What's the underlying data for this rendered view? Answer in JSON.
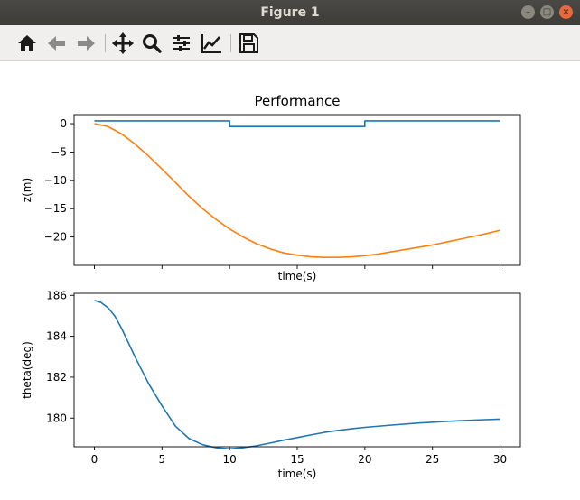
{
  "window": {
    "title": "Figure 1"
  },
  "toolbar": {
    "icons": [
      "home-icon",
      "back-arrow-icon",
      "forward-arrow-icon",
      "pan-icon",
      "zoom-icon",
      "configure-subplots-icon",
      "edit-axes-icon",
      "save-icon"
    ]
  },
  "chart_data": [
    {
      "type": "line",
      "title": "Performance",
      "xlabel": "time(s)",
      "ylabel": "z(m)",
      "xlim": [
        -1.5,
        31.5
      ],
      "ylim": [
        -25.0,
        1.6
      ],
      "xticks": [
        0,
        5,
        10,
        15,
        20,
        25,
        30
      ],
      "yticks": [
        0,
        -5,
        -10,
        -15,
        -20
      ],
      "ytick_labels": [
        "0",
        "−5",
        "−10",
        "−15",
        "−20"
      ],
      "show_xtick_labels": false,
      "series": [
        {
          "color": "#1f77b4",
          "x": [
            0,
            10,
            10,
            20,
            20,
            30
          ],
          "y": [
            0.5,
            0.5,
            -0.5,
            -0.5,
            0.5,
            0.5
          ]
        },
        {
          "color": "#ff7f0e",
          "x": [
            0,
            1,
            2,
            3,
            4,
            5,
            6,
            7,
            8,
            9,
            10,
            11,
            12,
            13,
            14,
            15,
            16,
            17,
            18,
            19,
            20,
            21,
            22,
            23,
            24,
            25,
            26,
            27,
            28,
            29,
            30
          ],
          "y": [
            0,
            -0.5,
            -1.8,
            -3.6,
            -5.7,
            -8.0,
            -10.4,
            -12.8,
            -15.0,
            -16.9,
            -18.6,
            -20.0,
            -21.2,
            -22.1,
            -22.8,
            -23.2,
            -23.5,
            -23.6,
            -23.6,
            -23.5,
            -23.3,
            -23.0,
            -22.6,
            -22.2,
            -21.8,
            -21.4,
            -20.9,
            -20.4,
            -19.9,
            -19.4,
            -18.8
          ]
        }
      ]
    },
    {
      "type": "line",
      "xlabel": "time(s)",
      "ylabel": "theta(deg)",
      "xlim": [
        -1.5,
        31.5
      ],
      "ylim": [
        178.6,
        186.1
      ],
      "xticks": [
        0,
        5,
        10,
        15,
        20,
        25,
        30
      ],
      "yticks": [
        180,
        182,
        184,
        186
      ],
      "ytick_labels": [
        "180",
        "182",
        "184",
        "186"
      ],
      "show_xtick_labels": true,
      "series": [
        {
          "color": "#1f77b4",
          "x": [
            0,
            0.5,
            1,
            1.5,
            2,
            3,
            4,
            5,
            6,
            7,
            8,
            9,
            10,
            11,
            12,
            13,
            14,
            15,
            16,
            17,
            18,
            19,
            20,
            22,
            24,
            26,
            28,
            30
          ],
          "y": [
            185.75,
            185.65,
            185.4,
            185.0,
            184.4,
            183.0,
            181.7,
            180.6,
            179.6,
            179.0,
            178.7,
            178.55,
            178.5,
            178.55,
            178.65,
            178.78,
            178.92,
            179.05,
            179.18,
            179.3,
            179.4,
            179.48,
            179.55,
            179.66,
            179.76,
            179.84,
            179.9,
            179.95
          ]
        }
      ]
    }
  ]
}
